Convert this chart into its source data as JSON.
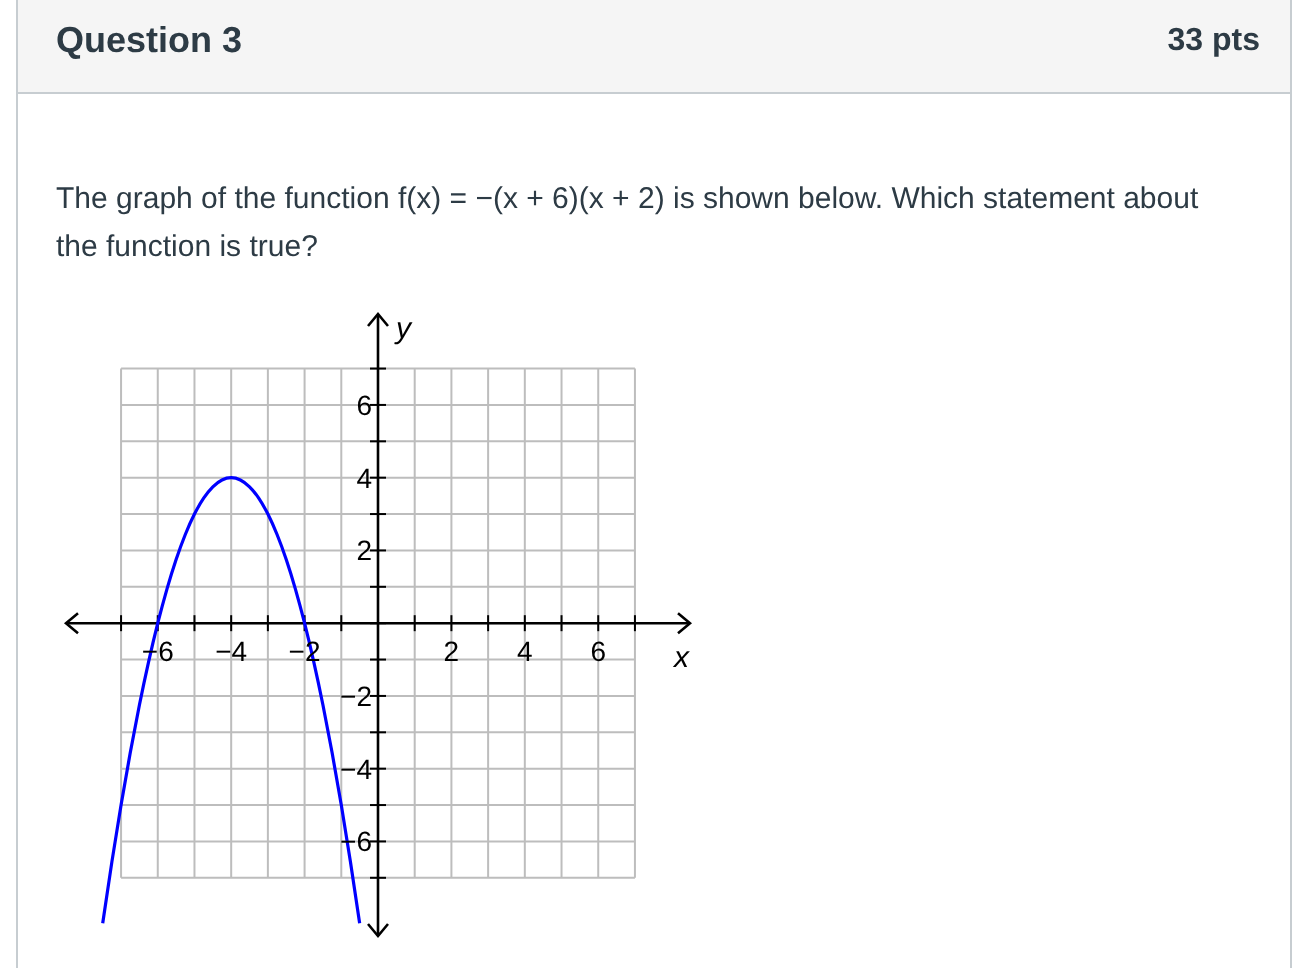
{
  "chart_data": {
    "type": "line",
    "title": "Question 3",
    "annotations": [
      "33 pts",
      "The graph of the function f(x) = −(x + 6)(x + 2) is shown below.  Which statement about the function is true?"
    ],
    "xlabel": "x",
    "ylabel": "y",
    "xlim": [
      -8.5,
      8.5
    ],
    "ylim": [
      -8.6,
      8.5
    ],
    "xticks": [
      {
        "value": -7,
        "label": null
      },
      -6,
      {
        "value": -5,
        "label": null
      },
      -4,
      {
        "value": -3,
        "label": null
      },
      -2,
      {
        "value": -1,
        "label": null
      },
      {
        "value": 0,
        "label": null
      },
      {
        "value": 1,
        "label": null
      },
      2,
      {
        "value": 3,
        "label": null
      },
      4,
      {
        "value": 5,
        "label": null
      },
      6,
      {
        "value": 7,
        "label": null
      }
    ],
    "yticks": [
      {
        "value": -7,
        "label": null
      },
      -6,
      {
        "value": -5,
        "label": null
      },
      -4,
      {
        "value": -3,
        "label": null
      },
      -2,
      {
        "value": -1,
        "label": null
      },
      {
        "value": 0,
        "label": null
      },
      {
        "value": 1,
        "label": null
      },
      2,
      {
        "value": 3,
        "label": null
      },
      4,
      {
        "value": 5,
        "label": null
      },
      6,
      {
        "value": 7,
        "label": null
      }
    ],
    "grid": true,
    "series": [
      {
        "color": "#0000ff",
        "x": [
          -7.5,
          -7.25,
          -7,
          -6.75,
          -6.5,
          -6.25,
          -6,
          -5.75,
          -5.5,
          -5.25,
          -5,
          -4.75,
          -4.5,
          -4.25,
          -4,
          -3.75,
          -3.5,
          -3.25,
          -3,
          -2.75,
          -2.5,
          -2.25,
          -2,
          -1.75,
          -1.5,
          -1.25,
          -1,
          -0.75,
          -0.5
        ],
        "values": [
          -8.25,
          -6.5625,
          -5,
          -3.5625,
          -2.25,
          -1.0625,
          0,
          0.9375,
          1.75,
          2.4375,
          3,
          3.4375,
          3.75,
          3.9375,
          4,
          3.9375,
          3.75,
          3.4375,
          3,
          2.4375,
          1.75,
          0.9375,
          0,
          -1.0625,
          -2.25,
          -3.5625,
          -5,
          -6.5625,
          -8.25
        ]
      }
    ]
  }
}
